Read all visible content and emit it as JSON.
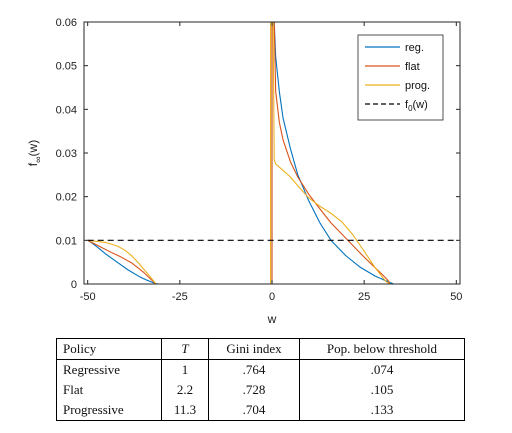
{
  "chart_data": {
    "type": "line",
    "xlabel": "w",
    "ylabel": "f",
    "ylabel_sub": "∞",
    "ylabel_arg": "(w)",
    "xlim": [
      -51,
      51
    ],
    "ylim": [
      0,
      0.06
    ],
    "x_ticks": [
      -50,
      -25,
      0,
      25,
      50
    ],
    "x_tick_labels": [
      "-50",
      "-25",
      "0",
      "25",
      "50"
    ],
    "y_ticks": [
      0,
      0.01,
      0.02,
      0.03,
      0.04,
      0.05,
      0.06
    ],
    "y_tick_labels": [
      "0",
      "0.01",
      "0.02",
      "0.03",
      "0.04",
      "0.05",
      "0.06"
    ],
    "grid": false,
    "legend_position": "top-right",
    "legend": {
      "reg": "reg.",
      "flat": "flat",
      "prog": "prog.",
      "f0_main": "f",
      "f0_sub": "0",
      "f0_arg": "(w)"
    },
    "series": [
      {
        "key": "reg",
        "name": "reg.",
        "color": "#0072BD",
        "x": [
          -50,
          -49,
          -47,
          -45,
          -42,
          -39,
          -36,
          -34,
          -32.5,
          -31.5,
          -31,
          -20,
          -10,
          0,
          0,
          0.6,
          1,
          2,
          3,
          5,
          7,
          10,
          13,
          16,
          20,
          24,
          28,
          31,
          33,
          40,
          50
        ],
        "y": [
          0.01,
          0.0095,
          0.0082,
          0.0068,
          0.005,
          0.0032,
          0.0017,
          0.0009,
          0.0004,
          0.0001,
          0,
          0,
          0,
          0,
          0.06,
          0.06,
          0.052,
          0.044,
          0.038,
          0.031,
          0.025,
          0.019,
          0.014,
          0.01,
          0.0065,
          0.0038,
          0.0018,
          0.0007,
          0,
          0,
          0
        ]
      },
      {
        "key": "flat",
        "name": "flat",
        "color": "#D95319",
        "x": [
          -50,
          -47,
          -44,
          -41,
          -38,
          -35,
          -33,
          -31.5,
          -20,
          -10,
          0,
          0,
          0.6,
          1,
          2,
          3,
          5,
          7,
          10,
          13,
          16,
          20,
          24,
          28,
          30,
          31.5,
          32,
          40,
          50
        ],
        "y": [
          0.01,
          0.0087,
          0.0074,
          0.0062,
          0.0048,
          0.0028,
          0.0012,
          0,
          0,
          0,
          0,
          0.06,
          0.06,
          0.044,
          0.037,
          0.033,
          0.028,
          0.0245,
          0.0205,
          0.0172,
          0.014,
          0.0105,
          0.007,
          0.0037,
          0.0021,
          0.0008,
          0,
          0,
          0
        ]
      },
      {
        "key": "prog",
        "name": "prog.",
        "color": "#EDB120",
        "x": [
          -50,
          -48,
          -45,
          -42,
          -40,
          -38,
          -36,
          -34,
          -32.5,
          -31.5,
          -20,
          -10,
          -0.4,
          -0.4,
          0.3,
          0.6,
          1,
          3,
          5,
          7,
          10,
          13,
          16,
          19,
          22,
          25,
          28,
          30,
          31,
          32,
          40,
          50
        ],
        "y": [
          0.01,
          0.0098,
          0.0095,
          0.0087,
          0.0078,
          0.0064,
          0.0046,
          0.0026,
          0.0011,
          0,
          0,
          0,
          0,
          0.06,
          0.06,
          0.0285,
          0.0275,
          0.026,
          0.0245,
          0.0225,
          0.0197,
          0.0178,
          0.0162,
          0.0142,
          0.0112,
          0.0075,
          0.0037,
          0.0015,
          0.0005,
          0,
          0,
          0
        ]
      },
      {
        "key": "f0",
        "name": "f0(w)",
        "color": "#000000",
        "dashed": true,
        "x": [
          -50,
          50
        ],
        "y": [
          0.01,
          0.01
        ]
      }
    ]
  },
  "table": {
    "headers": {
      "policy": "Policy",
      "t": "T",
      "gini": "Gini index",
      "pop": "Pop. below threshold"
    },
    "rows": [
      {
        "policy": "Regressive",
        "t": "1",
        "gini": ".764",
        "pop": ".074"
      },
      {
        "policy": "Flat",
        "t": "2.2",
        "gini": ".728",
        "pop": ".105"
      },
      {
        "policy": "Progressive",
        "t": "11.3",
        "gini": ".704",
        "pop": ".133"
      }
    ]
  }
}
